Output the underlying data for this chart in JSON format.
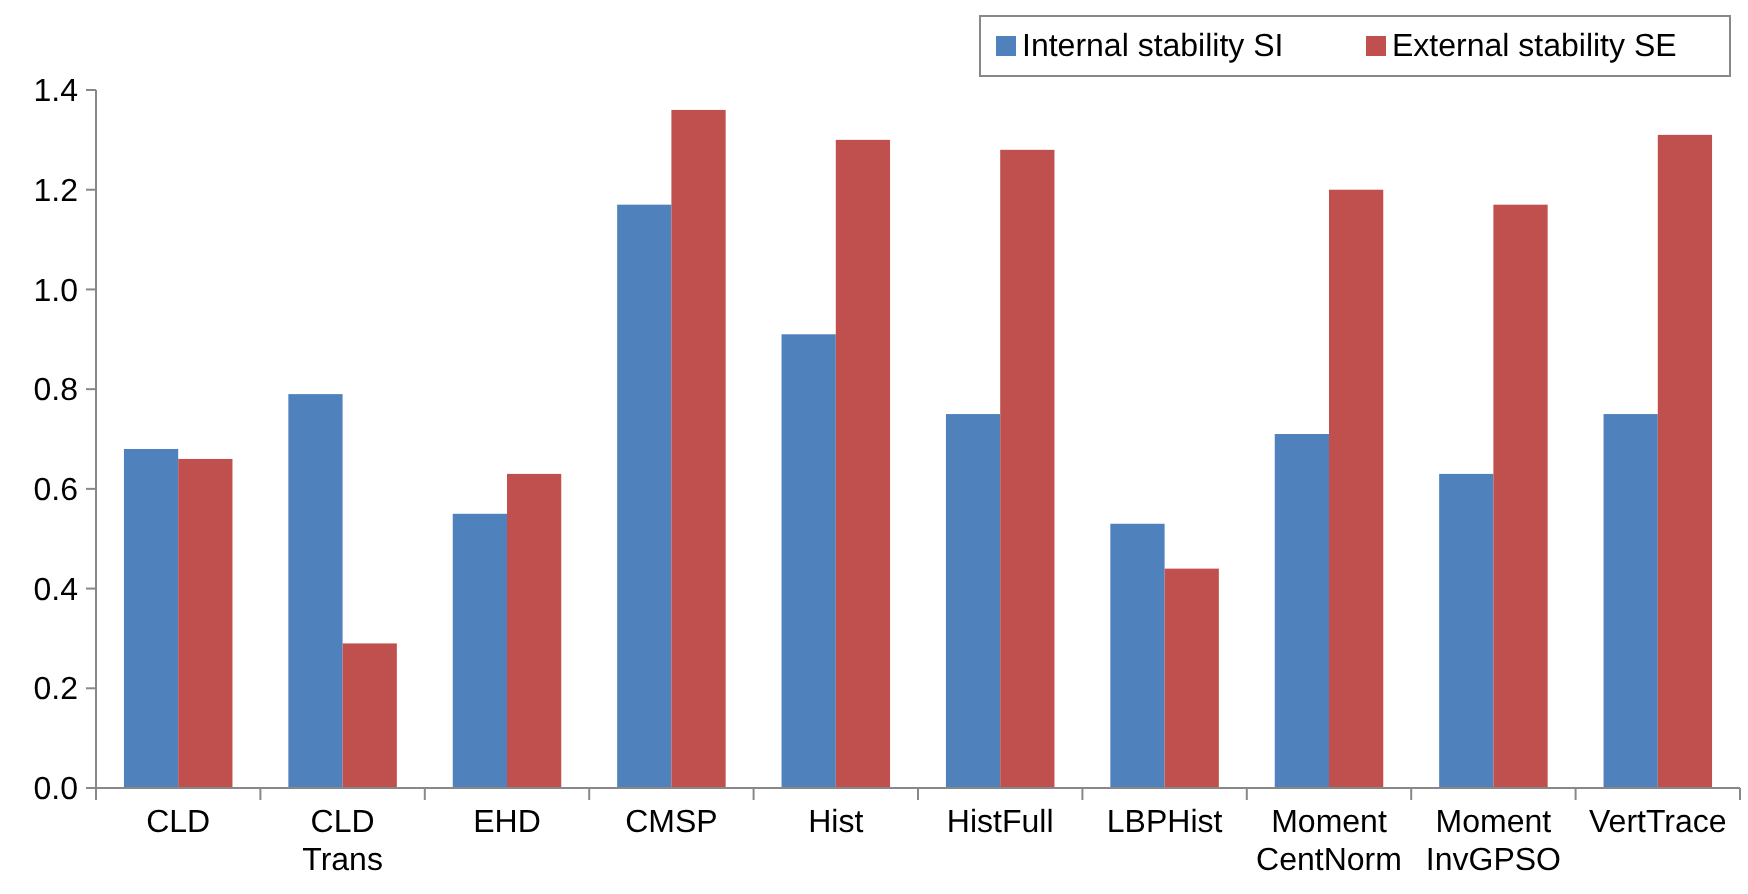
{
  "chart_data": {
    "type": "bar",
    "categories": [
      "CLD",
      "CLD Trans",
      "EHD",
      "CMSP",
      "Hist",
      "HistFull",
      "LBPHist",
      "Moment CentNorm",
      "Moment InvGPSO",
      "VertTrace"
    ],
    "series": [
      {
        "name": "Internal stability SI",
        "color": "#4f81bd",
        "values": [
          0.68,
          0.79,
          0.55,
          1.17,
          0.91,
          0.75,
          0.53,
          0.71,
          0.63,
          0.75
        ]
      },
      {
        "name": "External stability SE",
        "color": "#c0504d",
        "values": [
          0.66,
          0.29,
          0.63,
          1.36,
          1.3,
          1.28,
          0.44,
          1.2,
          1.17,
          1.31
        ]
      }
    ],
    "ylim": [
      0,
      1.4
    ],
    "yticks": [
      {
        "value": 0,
        "label": "0.0"
      },
      0.2,
      0.4,
      0.6,
      0.8,
      {
        "value": 1,
        "label": "1.0"
      },
      1.2,
      1.4
    ],
    "grid": false,
    "legend": "top right"
  }
}
